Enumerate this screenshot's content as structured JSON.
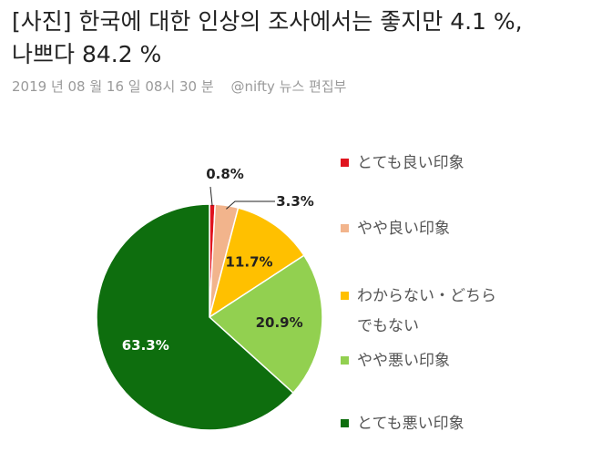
{
  "article": {
    "headline_line1": "[사진] 한국에 대한 인상의 조사에서는 좋지만 4.1 %,",
    "headline_line2": "나쁘다 84.2 %",
    "date": "2019 년 08 월 16 일 08시 30 분",
    "source": "@nifty 뉴스 편집부"
  },
  "chart_data": {
    "type": "pie",
    "title": "",
    "legend_placement": "right",
    "labels": [
      "とても良い印象",
      "やや良い印象",
      "わからない・どちらでもない",
      "やや悪い印象",
      "とても悪い印象"
    ],
    "values": [
      0.8,
      3.3,
      11.7,
      20.9,
      63.3
    ],
    "value_labels": [
      "0.8%",
      "3.3%",
      "11.7%",
      "20.9%",
      "63.3%"
    ],
    "colors": [
      "#e0141e",
      "#f2b48c",
      "#ffc000",
      "#92d050",
      "#0e6e0e"
    ],
    "legend_lines": [
      [
        "とても良い印象"
      ],
      [
        "やや良い印象"
      ],
      [
        "わからない・どちら",
        "でもない"
      ],
      [
        "やや悪い印象"
      ],
      [
        "とても悪い印象"
      ]
    ]
  }
}
